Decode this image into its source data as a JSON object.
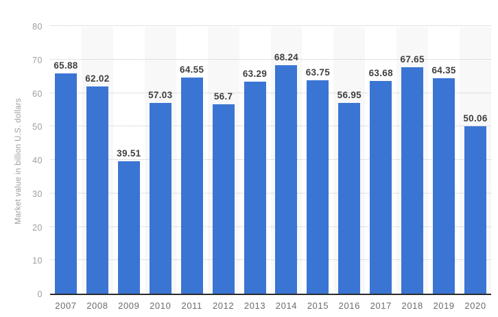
{
  "chart_data": {
    "type": "bar",
    "title": "",
    "xlabel": "",
    "ylabel": "Market value in billion U.S. dollars",
    "categories": [
      "2007",
      "2008",
      "2009",
      "2010",
      "2011",
      "2012",
      "2013",
      "2014",
      "2015",
      "2016",
      "2017",
      "2018",
      "2019",
      "2020"
    ],
    "values": [
      65.88,
      62.02,
      39.51,
      57.03,
      64.55,
      56.7,
      63.29,
      68.24,
      63.75,
      56.95,
      63.68,
      67.65,
      64.35,
      50.06
    ],
    "value_labels": [
      "65.88",
      "62.02",
      "39.51",
      "57.03",
      "64.55",
      "56.7",
      "63.29",
      "68.24",
      "63.75",
      "56.95",
      "63.68",
      "67.65",
      "64.35",
      "50.06"
    ],
    "ylim": [
      0,
      80
    ],
    "yticks": [
      0,
      10,
      20,
      30,
      40,
      50,
      60,
      70,
      80
    ],
    "grid": "horizontal-dotted",
    "legend": "none",
    "plot_bands": "alternating vertical column bands on even years",
    "colors": {
      "bar": "#3b75d3",
      "band": "#f8f8f9",
      "gridline": "#c6c6c6",
      "baseline": "#2a2a2a",
      "ytick_label": "#9c9c9c",
      "xtick_label": "#6a6a6a",
      "value_label": "#3f3f3f",
      "background": "#ffffff"
    }
  }
}
